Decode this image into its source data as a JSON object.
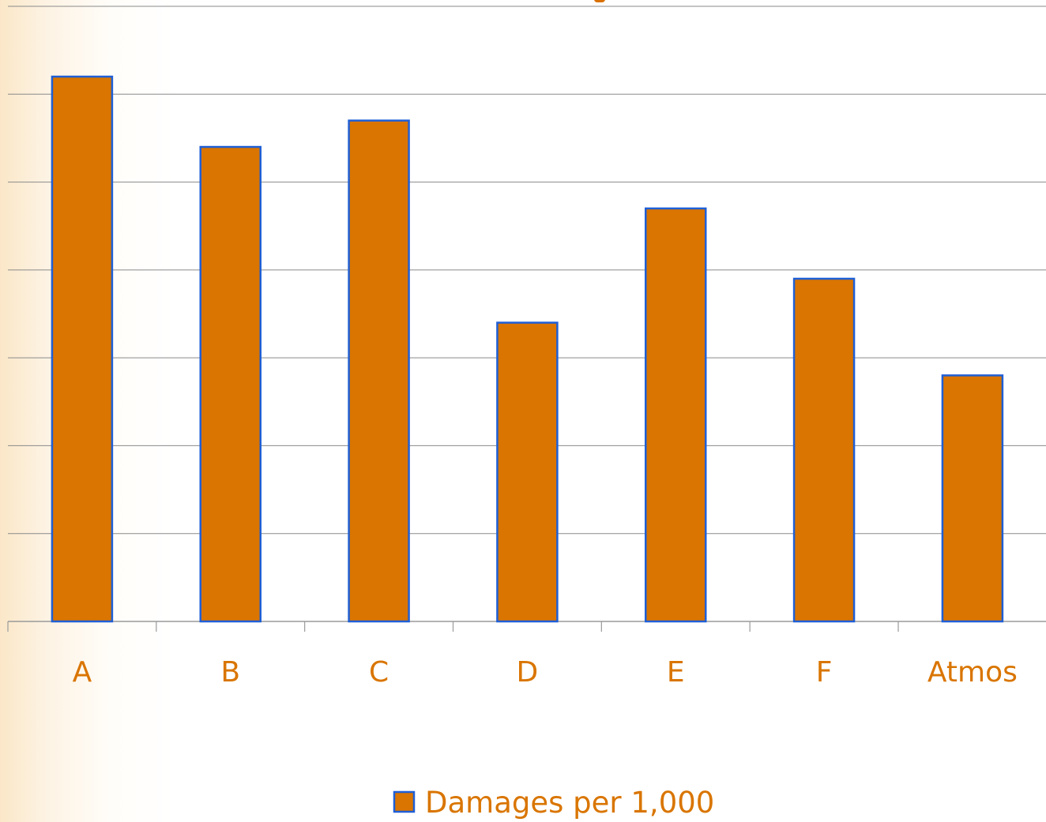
{
  "chart_data": {
    "type": "bar",
    "categories": [
      "A",
      "B",
      "C",
      "D",
      "E",
      "F",
      "Atmos"
    ],
    "series": [
      {
        "name": "Damages per 1,000",
        "values": [
          6.2,
          5.4,
          5.7,
          3.4,
          4.7,
          3.9,
          2.8
        ]
      }
    ],
    "ylim": [
      0,
      7
    ],
    "grid": true,
    "legend_position": "bottom",
    "bar_color": "#d97500",
    "bar_border_color": "#1f5fd6",
    "label_color": "#d97500",
    "gridline_color": "#8a8a8a"
  }
}
